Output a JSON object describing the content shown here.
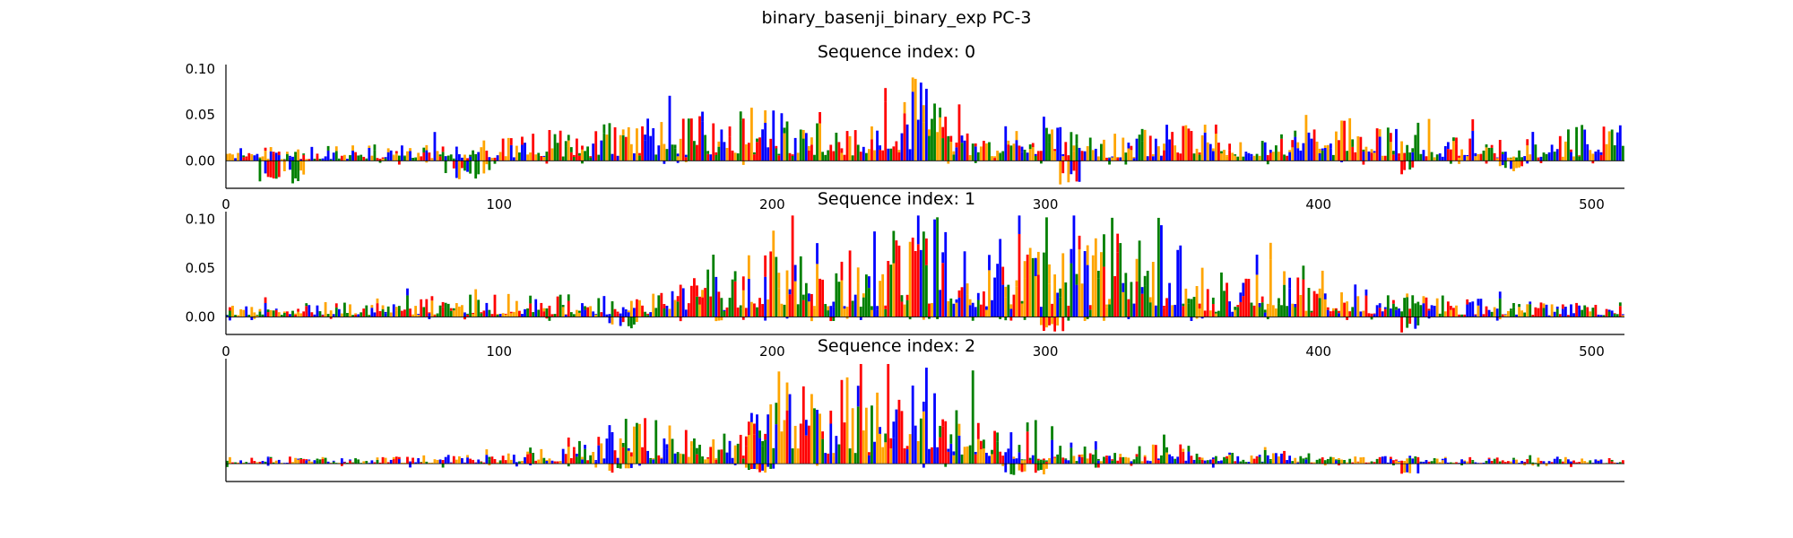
{
  "figure": {
    "title": "binary_basenji_binary_exp PC-3"
  },
  "colors": {
    "A": "#008000",
    "C": "#0000ff",
    "G": "#ffa500",
    "T": "#ff0000",
    "axis": "#000000"
  },
  "chart_data": [
    {
      "type": "sequence-logo",
      "title": "Sequence index: 0",
      "sequence_length": 512,
      "xlim": [
        0,
        512
      ],
      "ylim": [
        -0.03,
        0.105
      ],
      "xticks": [
        0,
        100,
        200,
        300,
        400,
        500
      ],
      "yticks": [
        0.0,
        0.05,
        0.1
      ],
      "ytick_labels": [
        "0.00",
        "0.05",
        "0.10"
      ],
      "position_profile": [
        [
          0,
          0.014
        ],
        [
          18,
          0.012
        ],
        [
          60,
          0.015
        ],
        [
          100,
          0.018
        ],
        [
          130,
          0.033
        ],
        [
          160,
          0.036
        ],
        [
          190,
          0.052
        ],
        [
          230,
          0.036
        ],
        [
          250,
          0.082
        ],
        [
          262,
          0.07
        ],
        [
          275,
          0.032
        ],
        [
          300,
          0.036
        ],
        [
          320,
          0.02
        ],
        [
          355,
          0.042
        ],
        [
          380,
          0.018
        ],
        [
          410,
          0.042
        ],
        [
          440,
          0.025
        ],
        [
          480,
          0.022
        ],
        [
          500,
          0.035
        ],
        [
          512,
          0.03
        ]
      ],
      "negative_regions": [
        [
          12,
          30,
          -0.025
        ],
        [
          80,
          96,
          -0.022
        ],
        [
          305,
          312,
          -0.028
        ],
        [
          430,
          436,
          -0.016
        ],
        [
          465,
          475,
          -0.012
        ]
      ],
      "peak_max": 0.105,
      "min_value": -0.028,
      "seed": 11
    },
    {
      "type": "sequence-logo",
      "title": "Sequence index: 1",
      "sequence_length": 512,
      "xlim": [
        0,
        512
      ],
      "ylim": [
        -0.018,
        0.108
      ],
      "xticks": [
        0,
        100,
        200,
        300,
        400,
        500
      ],
      "yticks": [
        0.0,
        0.05,
        0.1
      ],
      "ytick_labels": [
        "0.00",
        "0.05",
        "0.10"
      ],
      "position_profile": [
        [
          0,
          0.008
        ],
        [
          50,
          0.014
        ],
        [
          100,
          0.02
        ],
        [
          150,
          0.016
        ],
        [
          175,
          0.036
        ],
        [
          205,
          0.08
        ],
        [
          225,
          0.062
        ],
        [
          255,
          0.09
        ],
        [
          270,
          0.07
        ],
        [
          300,
          0.052
        ],
        [
          330,
          0.085
        ],
        [
          345,
          0.072
        ],
        [
          360,
          0.032
        ],
        [
          395,
          0.042
        ],
        [
          420,
          0.022
        ],
        [
          450,
          0.016
        ],
        [
          480,
          0.012
        ],
        [
          512,
          0.012
        ]
      ],
      "negative_regions": [
        [
          140,
          150,
          -0.012
        ],
        [
          298,
          306,
          -0.015
        ],
        [
          430,
          436,
          -0.016
        ]
      ],
      "peak_max": 0.104,
      "min_value": -0.016,
      "seed": 23
    },
    {
      "type": "sequence-logo",
      "title": "Sequence index: 2",
      "sequence_length": 512,
      "xlim": [
        0,
        512
      ],
      "ylim": [
        -0.02,
        0.118
      ],
      "xticks": [],
      "yticks": [],
      "ytick_labels": [],
      "position_profile": [
        [
          0,
          0.006
        ],
        [
          60,
          0.006
        ],
        [
          100,
          0.01
        ],
        [
          130,
          0.02
        ],
        [
          150,
          0.046
        ],
        [
          170,
          0.03
        ],
        [
          190,
          0.038
        ],
        [
          205,
          0.082
        ],
        [
          215,
          0.07
        ],
        [
          240,
          0.085
        ],
        [
          255,
          0.1
        ],
        [
          265,
          0.078
        ],
        [
          280,
          0.04
        ],
        [
          300,
          0.022
        ],
        [
          330,
          0.018
        ],
        [
          360,
          0.014
        ],
        [
          400,
          0.01
        ],
        [
          450,
          0.006
        ],
        [
          512,
          0.004
        ]
      ],
      "negative_regions": [
        [
          140,
          148,
          -0.013
        ],
        [
          190,
          200,
          -0.01
        ],
        [
          285,
          300,
          -0.016
        ],
        [
          430,
          438,
          -0.012
        ]
      ],
      "peak_max": 0.112,
      "min_value": -0.018,
      "seed": 37
    }
  ]
}
